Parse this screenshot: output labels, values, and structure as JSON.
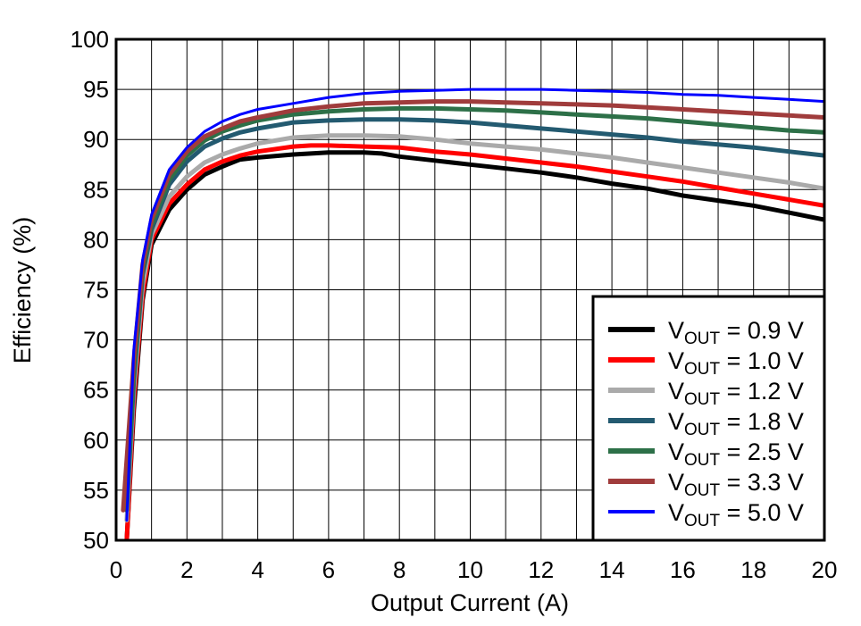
{
  "chart_data": {
    "type": "line",
    "title": "",
    "xlabel": "Output Current (A)",
    "ylabel": "Efficiency (%)",
    "xlim": [
      0,
      20
    ],
    "ylim": [
      50,
      100
    ],
    "xticks": [
      0,
      2,
      4,
      6,
      8,
      10,
      12,
      14,
      16,
      18,
      20
    ],
    "yticks": [
      50,
      55,
      60,
      65,
      70,
      75,
      80,
      85,
      90,
      95,
      100
    ],
    "x_tick_labels": [
      "0",
      "2",
      "4",
      "6",
      "8",
      "10",
      "12",
      "14",
      "16",
      "18",
      "20"
    ],
    "y_tick_labels": [
      "50",
      "55",
      "60",
      "65",
      "70",
      "75",
      "80",
      "85",
      "90",
      "95",
      "100"
    ],
    "grid": true,
    "legend_position": "bottom-right",
    "series": [
      {
        "name": "VOUT = 0.9 V",
        "legend_prefix": "V",
        "legend_sub": "OUT",
        "legend_suffix": " = 0.9 V",
        "color": "#000000",
        "line_width": 5,
        "x": [
          0.3,
          0.5,
          0.75,
          1.0,
          1.5,
          2.0,
          2.5,
          3.0,
          3.5,
          4.0,
          5.0,
          6.0,
          7.0,
          7.5,
          8.0,
          9.0,
          10.0,
          11.0,
          12.0,
          13.0,
          14.0,
          15.0,
          16.0,
          17.0,
          18.0,
          19.0,
          20.0
        ],
        "y": [
          50,
          63,
          74,
          79.5,
          83,
          85,
          86.5,
          87.3,
          88,
          88.2,
          88.5,
          88.7,
          88.7,
          88.6,
          88.3,
          87.9,
          87.5,
          87.1,
          86.7,
          86.2,
          85.6,
          85.1,
          84.4,
          83.9,
          83.4,
          82.7,
          82.0
        ]
      },
      {
        "name": "VOUT = 1.0 V",
        "legend_prefix": "V",
        "legend_sub": "OUT",
        "legend_suffix": " = 1.0 V",
        "color": "#ff0000",
        "line_width": 5,
        "x": [
          0.3,
          0.5,
          0.75,
          1.0,
          1.5,
          2.0,
          2.5,
          3.0,
          3.5,
          4.0,
          5.0,
          5.5,
          6.0,
          7.0,
          8.0,
          9.0,
          10.0,
          11.0,
          12.0,
          13.0,
          14.0,
          15.0,
          16.0,
          17.0,
          18.0,
          19.0,
          20.0
        ],
        "y": [
          50,
          64,
          74.5,
          80,
          83.6,
          85.5,
          87,
          87.8,
          88.4,
          88.8,
          89.3,
          89.4,
          89.4,
          89.3,
          89.2,
          88.8,
          88.5,
          88.1,
          87.7,
          87.3,
          86.8,
          86.3,
          85.8,
          85.2,
          84.6,
          84.0,
          83.4
        ]
      },
      {
        "name": "VOUT = 1.2 V",
        "legend_prefix": "V",
        "legend_sub": "OUT",
        "legend_suffix": " = 1.2 V",
        "color": "#aaaaaa",
        "line_width": 5,
        "x": [
          0.3,
          0.5,
          0.75,
          1.0,
          1.5,
          2.0,
          2.5,
          3.0,
          3.5,
          4.0,
          5.0,
          6.0,
          7.0,
          8.0,
          9.0,
          10.0,
          11.0,
          12.0,
          13.0,
          14.0,
          15.0,
          16.0,
          17.0,
          18.0,
          19.0,
          20.0
        ],
        "y": [
          52,
          65,
          75.5,
          80.5,
          84.3,
          86.3,
          87.7,
          88.5,
          89.1,
          89.6,
          90.2,
          90.4,
          90.4,
          90.3,
          90.0,
          89.6,
          89.3,
          89.0,
          88.6,
          88.2,
          87.7,
          87.2,
          86.7,
          86.2,
          85.7,
          85.1
        ]
      },
      {
        "name": "VOUT = 1.8 V",
        "legend_prefix": "V",
        "legend_sub": "OUT",
        "legend_suffix": " = 1.8 V",
        "color": "#235a70",
        "line_width": 5,
        "x": [
          0.3,
          0.5,
          0.75,
          1.0,
          1.5,
          2.0,
          2.5,
          3.0,
          3.5,
          4.0,
          5.0,
          6.0,
          7.0,
          8.0,
          9.0,
          10.0,
          11.0,
          12.0,
          13.0,
          14.0,
          15.0,
          16.0,
          17.0,
          18.0,
          19.0,
          20.0
        ],
        "y": [
          53,
          66,
          76.5,
          81,
          85.5,
          87.8,
          89.3,
          90.1,
          90.7,
          91.1,
          91.7,
          91.9,
          92.0,
          92.0,
          91.9,
          91.7,
          91.4,
          91.1,
          90.8,
          90.5,
          90.2,
          89.8,
          89.5,
          89.2,
          88.8,
          88.4
        ]
      },
      {
        "name": "VOUT = 2.5 V",
        "legend_prefix": "V",
        "legend_sub": "OUT",
        "legend_suffix": " = 2.5 V",
        "color": "#2d7048",
        "line_width": 5,
        "x": [
          0.3,
          0.5,
          0.75,
          1.0,
          1.5,
          2.0,
          2.5,
          3.0,
          3.5,
          4.0,
          5.0,
          6.0,
          7.0,
          8.0,
          9.0,
          10.0,
          11.0,
          12.0,
          13.0,
          14.0,
          15.0,
          16.0,
          17.0,
          18.0,
          19.0,
          20.0
        ],
        "y": [
          54,
          67,
          77,
          81.5,
          86,
          88.4,
          89.9,
          90.8,
          91.4,
          91.9,
          92.5,
          92.8,
          93.0,
          93.1,
          93.1,
          93.0,
          92.9,
          92.7,
          92.5,
          92.3,
          92.1,
          91.8,
          91.5,
          91.2,
          90.9,
          90.7
        ]
      },
      {
        "name": "VOUT = 3.3 V",
        "legend_prefix": "V",
        "legend_sub": "OUT",
        "legend_suffix": " = 3.3 V",
        "color": "#a03c3c",
        "line_width": 5,
        "x": [
          0.2,
          0.5,
          0.75,
          1.0,
          1.5,
          2.0,
          2.5,
          3.0,
          3.5,
          4.0,
          5.0,
          6.0,
          7.0,
          8.0,
          9.0,
          10.0,
          11.0,
          12.0,
          13.0,
          14.0,
          15.0,
          16.0,
          17.0,
          18.0,
          19.0,
          20.0
        ],
        "y": [
          53,
          68,
          77.5,
          82,
          86.5,
          88.8,
          90.3,
          91.1,
          91.8,
          92.2,
          92.9,
          93.3,
          93.6,
          93.7,
          93.8,
          93.8,
          93.7,
          93.6,
          93.5,
          93.4,
          93.2,
          93.0,
          92.8,
          92.6,
          92.4,
          92.2
        ]
      },
      {
        "name": "VOUT = 5.0 V",
        "legend_prefix": "V",
        "legend_sub": "OUT",
        "legend_suffix": " = 5.0 V",
        "color": "#0000ff",
        "line_width": 3,
        "x": [
          0.3,
          0.5,
          0.75,
          1.0,
          1.5,
          2.0,
          2.5,
          3.0,
          3.5,
          4.0,
          5.0,
          6.0,
          7.0,
          8.0,
          9.0,
          10.0,
          11.0,
          12.0,
          13.0,
          14.0,
          15.0,
          16.0,
          17.0,
          18.0,
          19.0,
          20.0
        ],
        "y": [
          52,
          69,
          78,
          82.5,
          87,
          89.2,
          90.8,
          91.8,
          92.5,
          93.0,
          93.6,
          94.2,
          94.6,
          94.8,
          94.9,
          95.0,
          95.0,
          95.0,
          94.9,
          94.8,
          94.7,
          94.5,
          94.4,
          94.2,
          94.0,
          93.8
        ]
      }
    ]
  }
}
